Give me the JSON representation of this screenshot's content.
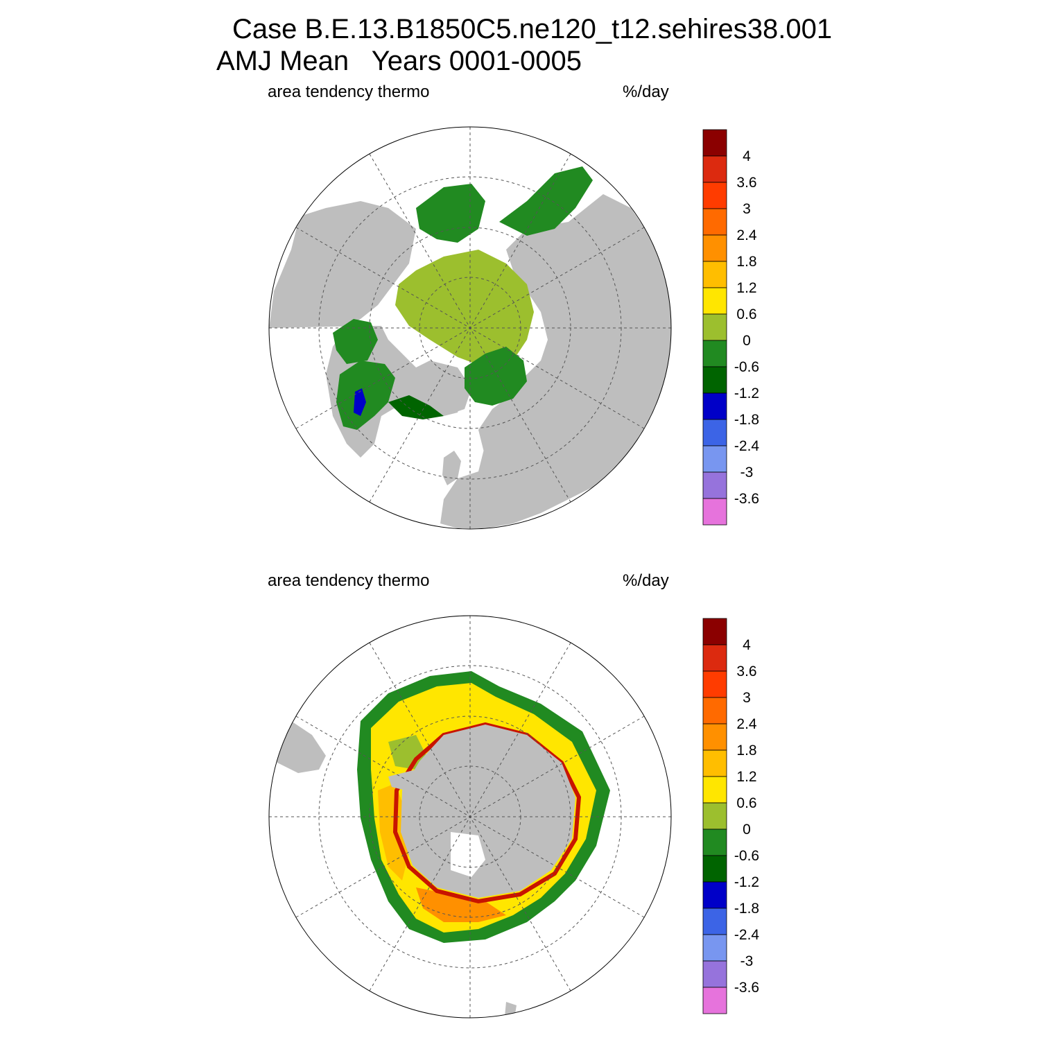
{
  "title": {
    "line1": "Case B.E.13.B1850C5.ne120_t12.sehires38.001",
    "line2": "AMJ Mean   Years 0001-0005"
  },
  "colors": {
    "land": "#bebebe",
    "ocean": "#ffffff",
    "frame": "#000000",
    "graticule": "#555555"
  },
  "colorbar": {
    "levels": [
      "4",
      "3.6",
      "3",
      "2.4",
      "1.8",
      "1.2",
      "0.6",
      "0",
      "-0.6",
      "-1.2",
      "-1.8",
      "-2.4",
      "-3",
      "-3.6"
    ],
    "colors": [
      "#8b0000",
      "#dc2a0f",
      "#ff3c00",
      "#ff6a00",
      "#ff9000",
      "#ffbe00",
      "#ffe600",
      "#9cbf2e",
      "#218a21",
      "#006400",
      "#0000c8",
      "#3c64e6",
      "#7896f0",
      "#9673dc",
      "#e673dc"
    ]
  },
  "panels": [
    {
      "id": "north",
      "label_left": "area tendency thermo",
      "label_right": "%/day",
      "hemisphere": "Arctic"
    },
    {
      "id": "south",
      "label_left": "area tendency thermo",
      "label_right": "%/day",
      "hemisphere": "Antarctic"
    }
  ]
}
